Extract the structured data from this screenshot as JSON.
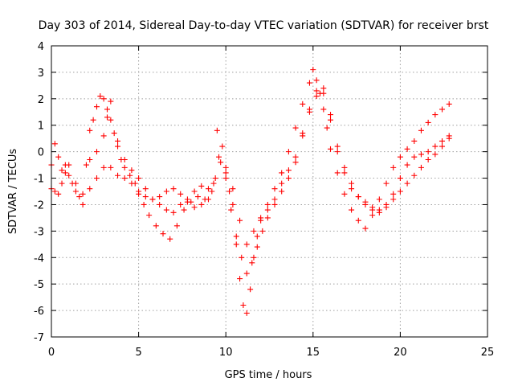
{
  "chart_data": {
    "type": "scatter",
    "title": "Day 303 of 2014, Sidereal Day-to-day VTEC variation (SDTVAR) for receiver brst",
    "xlabel": "GPS time / hours",
    "ylabel": "SDTVAR / TECUs",
    "xlim": [
      0,
      25
    ],
    "ylim": [
      -7,
      4
    ],
    "xticks": [
      "0",
      "5",
      "10",
      "15",
      "20",
      "25"
    ],
    "yticks": [
      "-7",
      "-6",
      "-5",
      "-4",
      "-3",
      "-2",
      "-1",
      "0",
      "1",
      "2",
      "3",
      "4"
    ],
    "grid": true,
    "marker": "plus",
    "color": "#ff0000",
    "series": [
      {
        "x": [
          0.0,
          0.2,
          0.4,
          0.6,
          0.8,
          1.0,
          1.2,
          1.4,
          1.6,
          1.8,
          2.0,
          2.2,
          2.4,
          2.6,
          2.8,
          3.0,
          3.2,
          3.4,
          3.6,
          3.8,
          4.0,
          4.2,
          4.5,
          4.8,
          5.0,
          5.3,
          5.6,
          6.0,
          6.4,
          6.8,
          7.2,
          7.6,
          8.0,
          8.4,
          8.8,
          9.2,
          9.5,
          9.8,
          10.0,
          10.2,
          10.4,
          10.6,
          10.8,
          11.0,
          11.2,
          11.4,
          11.6,
          11.8,
          12.0,
          12.4,
          12.8,
          13.2,
          13.6,
          14.0,
          14.4,
          14.8,
          15.0,
          15.2,
          15.4,
          15.6,
          15.8,
          16.0,
          16.4,
          16.8,
          17.2,
          17.6,
          18.0,
          18.4,
          18.8,
          19.2,
          19.6,
          20.0,
          20.4,
          20.8,
          21.2,
          21.6,
          22.0,
          22.4,
          22.8
        ],
        "y": [
          -0.5,
          0.3,
          -0.2,
          -0.7,
          -0.5,
          -0.9,
          -1.2,
          -1.5,
          -1.7,
          -2.0,
          -0.5,
          0.8,
          1.2,
          1.7,
          2.1,
          2.0,
          1.6,
          1.2,
          0.7,
          0.2,
          -0.3,
          -0.6,
          -0.9,
          -1.2,
          -1.6,
          -2.0,
          -2.4,
          -2.8,
          -3.1,
          -3.3,
          -2.8,
          -2.2,
          -1.9,
          -1.7,
          -1.8,
          -1.5,
          0.8,
          0.2,
          -0.8,
          -1.5,
          -2.0,
          -3.5,
          -4.8,
          -5.8,
          -6.1,
          -5.2,
          -4.0,
          -3.2,
          -2.6,
          -2.0,
          -1.4,
          -0.8,
          0.0,
          0.9,
          1.8,
          2.6,
          3.1,
          2.7,
          2.2,
          1.6,
          0.9,
          0.1,
          -0.8,
          -1.6,
          -2.2,
          -2.6,
          -2.9,
          -2.4,
          -1.8,
          -1.2,
          -0.6,
          -0.2,
          0.1,
          0.4,
          0.8,
          1.1,
          1.4,
          1.6,
          1.8
        ]
      },
      {
        "x": [
          0.0,
          0.2,
          0.4,
          0.6,
          0.8,
          1.0,
          1.4,
          1.8,
          2.2,
          2.6,
          3.0,
          3.4,
          3.8,
          4.2,
          4.6,
          5.0,
          5.4,
          5.8,
          6.2,
          6.6,
          7.0,
          7.4,
          7.8,
          8.2,
          8.6,
          9.0,
          9.4,
          9.7,
          10.0,
          10.3,
          10.6,
          10.9,
          11.2,
          11.5,
          11.8,
          12.1,
          12.4,
          12.8,
          13.2,
          13.6,
          14.0,
          14.4,
          14.8,
          15.2,
          15.6,
          16.0,
          16.4,
          16.8,
          17.2,
          17.6,
          18.0,
          18.4,
          18.8,
          19.2,
          19.6,
          20.0,
          20.4,
          20.8,
          21.2,
          21.6,
          22.0,
          22.4,
          22.8
        ],
        "y": [
          -1.4,
          -1.5,
          -1.6,
          -1.2,
          -0.8,
          -0.5,
          -1.2,
          -1.6,
          -1.4,
          -1.0,
          -0.6,
          -0.6,
          -0.9,
          -1.0,
          -1.2,
          -1.5,
          -1.7,
          -1.8,
          -1.7,
          -1.5,
          -1.4,
          -1.6,
          -1.8,
          -1.5,
          -1.3,
          -1.4,
          -1.0,
          -0.4,
          -1.0,
          -2.2,
          -3.2,
          -4.0,
          -4.6,
          -4.2,
          -3.6,
          -3.0,
          -2.5,
          -2.0,
          -1.5,
          -1.0,
          -0.4,
          0.6,
          1.5,
          2.1,
          2.2,
          1.2,
          0.0,
          -0.8,
          -1.4,
          -1.7,
          -1.9,
          -2.1,
          -2.2,
          -2.0,
          -1.6,
          -1.0,
          -0.5,
          -0.2,
          -0.1,
          0.0,
          0.2,
          0.4,
          0.6
        ]
      },
      {
        "x": [
          2.2,
          2.6,
          3.0,
          3.2,
          3.4,
          3.8,
          4.2,
          4.6,
          5.0,
          5.4,
          5.8,
          6.2,
          6.6,
          7.0,
          7.4,
          7.8,
          8.2,
          8.6,
          9.0,
          9.3,
          9.6,
          10.0,
          10.4,
          10.8,
          11.2,
          11.6,
          12.0,
          12.4,
          12.8,
          13.2,
          13.6,
          14.0,
          14.4,
          14.8,
          15.2,
          15.6,
          16.0,
          16.4,
          16.8,
          17.2,
          17.6,
          18.0,
          18.4,
          18.8,
          19.2,
          19.6,
          20.0,
          20.4,
          20.8,
          21.2,
          21.6,
          22.0,
          22.4,
          22.8
        ],
        "y": [
          -0.3,
          0.0,
          0.6,
          1.3,
          1.9,
          0.4,
          -0.3,
          -0.7,
          -1.0,
          -1.4,
          -1.8,
          -2.0,
          -2.2,
          -2.3,
          -2.0,
          -1.9,
          -2.1,
          -2.0,
          -1.8,
          -1.2,
          -0.2,
          -0.6,
          -1.4,
          -2.6,
          -3.5,
          -3.0,
          -2.5,
          -2.2,
          -1.8,
          -1.2,
          -0.7,
          -0.2,
          0.7,
          1.6,
          2.3,
          2.4,
          1.4,
          0.2,
          -0.6,
          -1.2,
          -1.7,
          -2.0,
          -2.2,
          -2.3,
          -2.1,
          -1.8,
          -1.5,
          -1.2,
          -0.9,
          -0.6,
          -0.3,
          -0.1,
          0.2,
          0.5
        ]
      }
    ]
  }
}
